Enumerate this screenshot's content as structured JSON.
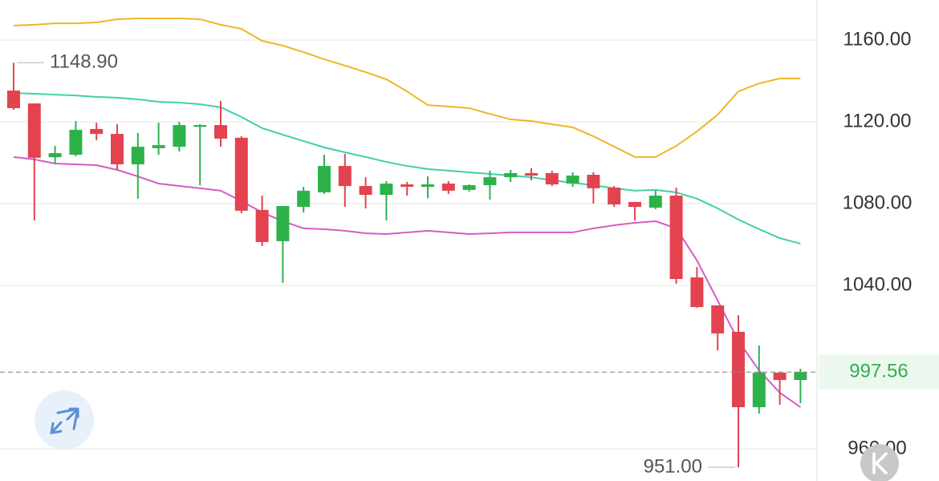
{
  "chart_data": {
    "type": "candlestick",
    "ylim": [
      944.3,
      1179.6
    ],
    "yticks": [
      {
        "value": 960,
        "label": "960.00"
      },
      {
        "value": 1040,
        "label": "1040.00"
      },
      {
        "value": 1080,
        "label": "1080.00"
      },
      {
        "value": 1120,
        "label": "1120.00"
      },
      {
        "value": 1160,
        "label": "1160.00"
      }
    ],
    "grid": true,
    "up_color": "#2db24a",
    "down_color": "#e2434f",
    "open": [
      1135.3,
      1129.0,
      1102.7,
      1103.9,
      1116.5,
      1114.1,
      1099.2,
      1107.1,
      1107.8,
      1118.0,
      1118.4,
      1112.2,
      1076.9,
      1061.6,
      1078.4,
      1085.5,
      1098.4,
      1088.6,
      1084.3,
      1089.4,
      1088.2,
      1089.8,
      1086.7,
      1089.0,
      1092.9,
      1094.9,
      1094.9,
      1089.8,
      1094.1,
      1087.8,
      1080.8,
      1078.0,
      1083.9,
      1043.9,
      1030.2,
      1017.3,
      980.4,
      997.3,
      993.7
    ],
    "high": [
      1148.9,
      1129.0,
      1108.2,
      1120.4,
      1119.6,
      1118.8,
      1114.5,
      1119.6,
      1120.0,
      1118.8,
      1130.2,
      1113.0,
      1083.9,
      1078.8,
      1088.2,
      1103.9,
      1104.3,
      1092.9,
      1091.0,
      1090.6,
      1093.3,
      1091.0,
      1089.4,
      1096.1,
      1096.5,
      1097.3,
      1096.1,
      1095.3,
      1095.3,
      1088.6,
      1080.8,
      1086.3,
      1087.8,
      1049.0,
      1030.2,
      1025.5,
      1010.6,
      997.3,
      999.2
    ],
    "low": [
      1125.9,
      1071.8,
      1099.2,
      1103.1,
      1111.0,
      1096.5,
      1082.4,
      1103.9,
      1105.5,
      1089.0,
      1107.8,
      1075.3,
      1059.2,
      1041.2,
      1075.7,
      1084.7,
      1078.4,
      1077.6,
      1071.8,
      1083.9,
      1082.7,
      1084.7,
      1085.9,
      1082.0,
      1090.6,
      1091.4,
      1088.6,
      1088.2,
      1080.0,
      1078.4,
      1071.8,
      1077.3,
      1040.8,
      1029.0,
      1008.2,
      951.0,
      977.3,
      981.6,
      982.4
    ],
    "close": [
      1126.7,
      1102.4,
      1104.7,
      1116.1,
      1114.1,
      1099.2,
      1107.8,
      1108.6,
      1118.4,
      1118.4,
      1111.8,
      1076.5,
      1061.2,
      1078.8,
      1086.3,
      1098.4,
      1088.6,
      1084.3,
      1089.8,
      1088.2,
      1089.4,
      1086.3,
      1089.0,
      1092.9,
      1094.9,
      1093.7,
      1089.4,
      1093.7,
      1087.5,
      1079.6,
      1078.4,
      1083.9,
      1043.1,
      1029.4,
      1016.5,
      980.4,
      997.3,
      993.7,
      997.56
    ],
    "series": [
      {
        "color": "#f0b429",
        "values": [
          1167.1,
          1167.5,
          1168.2,
          1168.2,
          1168.6,
          1170.2,
          1170.6,
          1170.6,
          1170.6,
          1170.2,
          1167.5,
          1165.5,
          1159.6,
          1157.3,
          1154.1,
          1150.6,
          1147.5,
          1144.3,
          1140.8,
          1134.9,
          1128.2,
          1127.5,
          1126.7,
          1123.9,
          1121.2,
          1120.4,
          1118.8,
          1117.3,
          1112.9,
          1107.9,
          1102.8,
          1102.8,
          1108.2,
          1115.3,
          1123.5,
          1134.9,
          1138.8,
          1141.2,
          1141.2
        ]
      },
      {
        "color": "#3ecfa8",
        "values": [
          1134.1,
          1133.7,
          1133.3,
          1132.9,
          1132.2,
          1131.8,
          1131.0,
          1129.8,
          1129.4,
          1128.6,
          1127.1,
          1122.4,
          1116.9,
          1113.7,
          1110.6,
          1107.5,
          1105.1,
          1102.8,
          1100.4,
          1098.4,
          1096.9,
          1096.1,
          1095.3,
          1094.5,
          1093.7,
          1092.9,
          1091.4,
          1090.2,
          1089.0,
          1087.5,
          1086.3,
          1086.7,
          1085.5,
          1082.4,
          1077.7,
          1072.2,
          1067.5,
          1063.1,
          1060.4
        ]
      },
      {
        "color": "#d65bc3",
        "values": [
          1102.8,
          1101.6,
          1099.6,
          1099.2,
          1098.8,
          1096.5,
          1093.3,
          1089.8,
          1088.6,
          1087.5,
          1086.3,
          1081.2,
          1075.7,
          1071.4,
          1067.9,
          1067.5,
          1066.7,
          1065.5,
          1065.1,
          1065.9,
          1066.7,
          1065.9,
          1065.1,
          1065.5,
          1065.9,
          1065.9,
          1065.9,
          1065.9,
          1067.9,
          1069.4,
          1070.6,
          1071.4,
          1067.9,
          1052.2,
          1032.6,
          1012.9,
          998.4,
          987.5,
          980.4
        ]
      }
    ],
    "max_label": {
      "value": 1148.9,
      "label": "1148.90"
    },
    "min_label": {
      "value": 951.0,
      "label": "951.00"
    },
    "last_price": {
      "value": 997.56,
      "label": "997.56"
    }
  }
}
